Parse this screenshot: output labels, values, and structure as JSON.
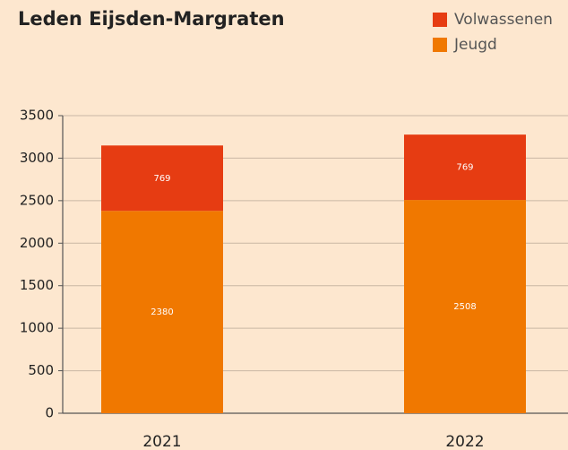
{
  "chart_data": {
    "type": "stacked_bar",
    "title": "Leden Eijsden-Margraten",
    "categories": [
      "2021",
      "2022"
    ],
    "series": [
      {
        "name": "Jeugd",
        "color": "#f07800",
        "values": [
          2380,
          2508
        ]
      },
      {
        "name": "Volwassenen",
        "color": "#e63c12",
        "values": [
          769,
          769
        ]
      }
    ],
    "ylim": [
      0,
      3500
    ],
    "yticks": [
      0,
      500,
      1000,
      1500,
      2000,
      2500,
      3000,
      3500
    ],
    "grid": true
  }
}
